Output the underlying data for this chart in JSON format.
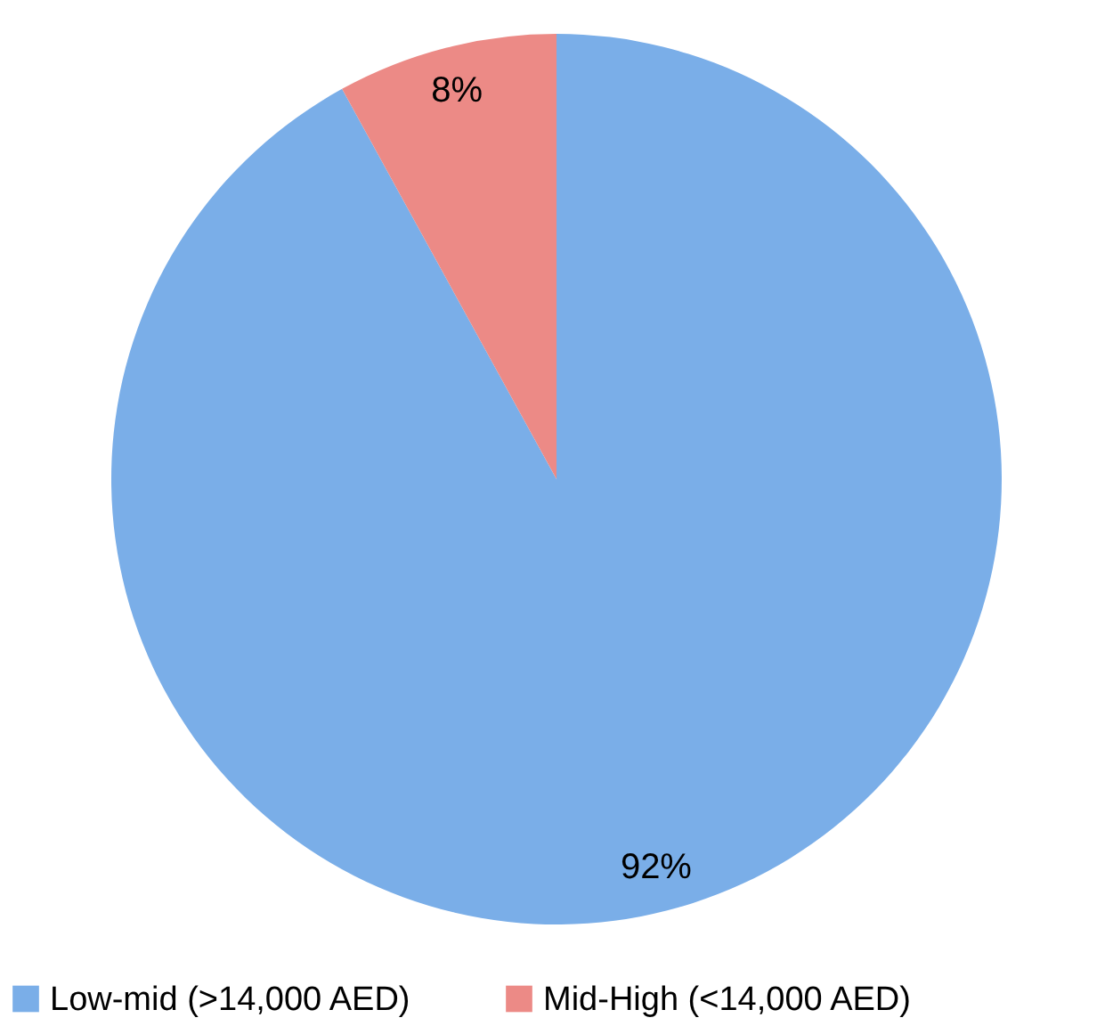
{
  "chart_data": {
    "type": "pie",
    "categories": [
      "Low-mid (>14,000 AED)",
      "Mid-High (<14,000 AED)"
    ],
    "values": [
      92,
      8
    ],
    "colors": [
      "#7aaee8",
      "#ec8a86"
    ],
    "value_labels": [
      "92%",
      "8%"
    ],
    "legend": "bottom"
  }
}
